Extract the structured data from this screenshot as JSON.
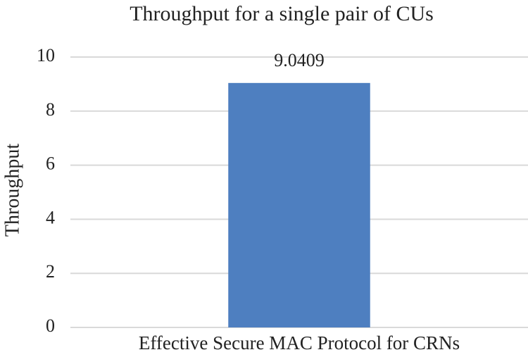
{
  "chart_data": {
    "type": "bar",
    "title": "Throughput for a single pair of CUs",
    "y_label": "Throughput",
    "categories": [
      "Effective Secure MAC Protocol for CRNs"
    ],
    "values": [
      9.0409
    ],
    "color": "#4e7fc0",
    "ylim": [
      0,
      10
    ],
    "yticks": [
      0,
      2,
      4,
      6,
      8,
      10
    ],
    "grid": true
  }
}
